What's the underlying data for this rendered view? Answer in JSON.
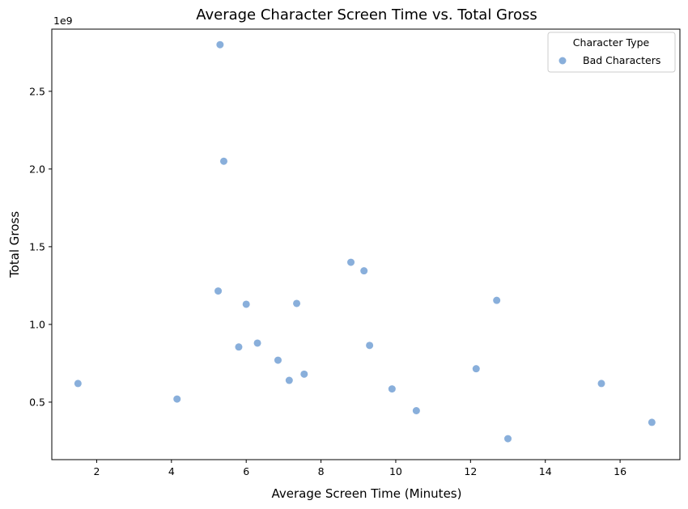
{
  "chart_data": {
    "type": "scatter",
    "title": "Average Character Screen Time vs. Total Gross",
    "xlabel": "Average Screen Time (Minutes)",
    "ylabel": "Total Gross",
    "y_offset_label": "1e9",
    "y_scale": 1000000000,
    "xlim": [
      0.8,
      17.6
    ],
    "ylim": [
      0.13,
      2.9
    ],
    "x_ticks": [
      2,
      4,
      6,
      8,
      10,
      12,
      14,
      16
    ],
    "y_ticks": [
      0.5,
      1.0,
      1.5,
      2.0,
      2.5
    ],
    "x_tick_labels": [
      "2",
      "4",
      "6",
      "8",
      "10",
      "12",
      "14",
      "16"
    ],
    "y_tick_labels": [
      "0.5",
      "1.0",
      "1.5",
      "2.0",
      "2.5"
    ],
    "grid": false,
    "legend": {
      "title": "Character Type",
      "placement": "top-right",
      "entries": [
        "Bad Characters"
      ]
    },
    "series": [
      {
        "name": "Bad Characters",
        "color": "#6c9bd2",
        "points": [
          {
            "x": 1.5,
            "y": 0.62
          },
          {
            "x": 4.15,
            "y": 0.52
          },
          {
            "x": 5.25,
            "y": 1.215
          },
          {
            "x": 5.3,
            "y": 2.8
          },
          {
            "x": 5.4,
            "y": 2.05
          },
          {
            "x": 5.8,
            "y": 0.855
          },
          {
            "x": 6.0,
            "y": 1.13
          },
          {
            "x": 6.3,
            "y": 0.88
          },
          {
            "x": 6.85,
            "y": 0.77
          },
          {
            "x": 7.15,
            "y": 0.64
          },
          {
            "x": 7.35,
            "y": 1.135
          },
          {
            "x": 7.55,
            "y": 0.68
          },
          {
            "x": 8.8,
            "y": 1.4
          },
          {
            "x": 9.15,
            "y": 1.345
          },
          {
            "x": 9.3,
            "y": 0.865
          },
          {
            "x": 9.9,
            "y": 0.585
          },
          {
            "x": 10.55,
            "y": 0.445
          },
          {
            "x": 12.15,
            "y": 0.715
          },
          {
            "x": 12.7,
            "y": 1.155
          },
          {
            "x": 13.0,
            "y": 0.265
          },
          {
            "x": 15.5,
            "y": 0.62
          },
          {
            "x": 16.85,
            "y": 0.37
          }
        ]
      }
    ]
  }
}
